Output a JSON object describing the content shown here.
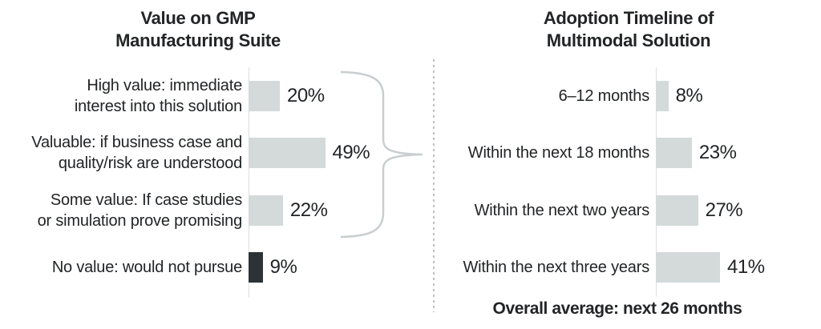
{
  "colors": {
    "bar_fill": "#d4d9da",
    "bar_dark": "#2d3237",
    "text": "#222426",
    "axis": "#dcdfe0",
    "divider": "#b8c2c4",
    "brace": "#c9ced0",
    "background": "#ffffff"
  },
  "chart_data": [
    {
      "type": "bar",
      "orientation": "horizontal",
      "title": "Value on GMP Manufacturing Suite",
      "title_lines": [
        "Value on GMP",
        "Manufacturing Suite"
      ],
      "categories": [
        "High value: immediate interest into this solution",
        "Valuable: if business case and quality/risk are understood",
        "Some value: If case studies or simulation prove promising",
        "No value: would not pursue"
      ],
      "category_lines": [
        [
          "High value: immediate",
          "interest into this solution"
        ],
        [
          "Valuable: if business case and",
          "quality/risk are understood"
        ],
        [
          "Some value: If case studies",
          "or simulation prove promising"
        ],
        [
          "No value: would not pursue"
        ]
      ],
      "values": [
        20,
        49,
        22,
        9
      ],
      "value_labels": [
        "20%",
        "49%",
        "22%",
        "9%"
      ],
      "unit": "percent",
      "dark_bar_indices": [
        3
      ],
      "legend": "none",
      "grid": "off"
    },
    {
      "type": "bar",
      "orientation": "horizontal",
      "title": "Adoption Timeline of Multimodal Solution",
      "title_lines": [
        "Adoption Timeline of",
        "Multimodal Solution"
      ],
      "categories": [
        "6–12 months",
        "Within the next 18 months",
        "Within the next two years",
        "Within the next three years"
      ],
      "category_lines": [
        [
          "6–12 months"
        ],
        [
          "Within the next 18 months"
        ],
        [
          "Within the next two years"
        ],
        [
          "Within the next three years"
        ]
      ],
      "values": [
        8,
        23,
        27,
        41
      ],
      "value_labels": [
        "8%",
        "23%",
        "27%",
        "41%"
      ],
      "unit": "percent",
      "annotation": "Overall average: next 26 months",
      "legend": "none",
      "grid": "off"
    }
  ],
  "decorations": {
    "curly_brace": "right-pointing brace spanning left chart rows 1-3, pointing toward right chart",
    "divider_style": "vertical dashed line between charts"
  }
}
